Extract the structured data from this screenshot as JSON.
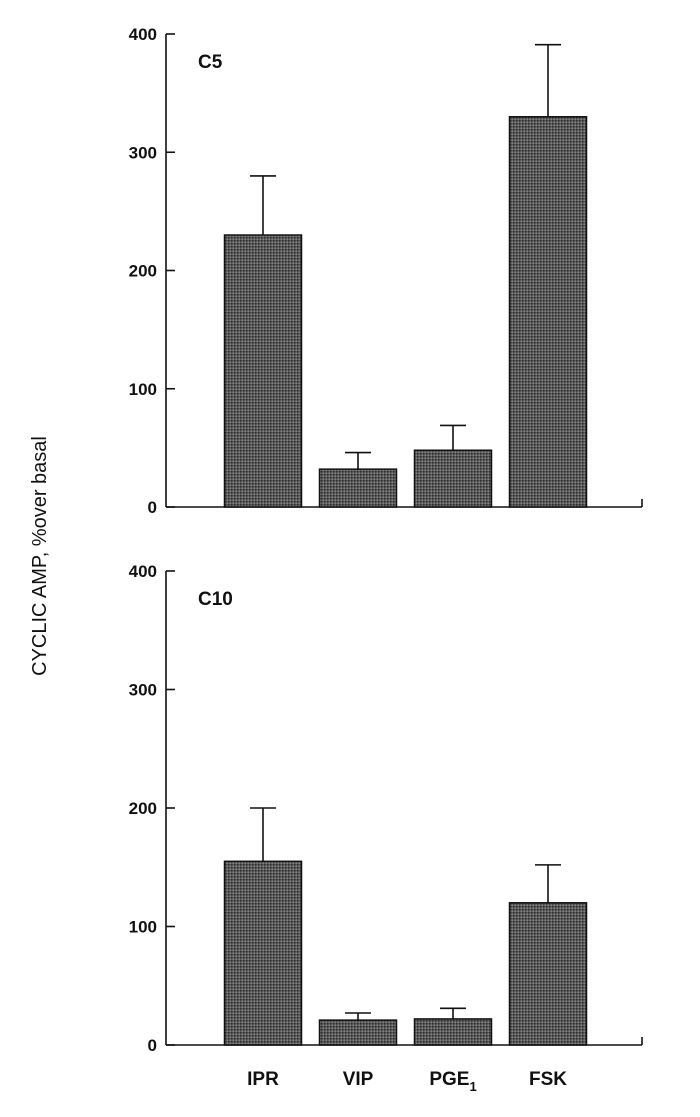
{
  "ylabel": "CYCLIC AMP, %over basal",
  "chart_data": [
    {
      "type": "bar",
      "panel": "C5",
      "categories": [
        "IPR",
        "VIP",
        "PGE1",
        "FSK"
      ],
      "values": [
        230,
        32,
        48,
        330
      ],
      "errors": [
        50,
        14,
        21,
        61
      ],
      "ylim": [
        0,
        400
      ],
      "yticks": [
        0,
        100,
        200,
        300,
        400
      ],
      "ylabel": "CYCLIC AMP, %over basal"
    },
    {
      "type": "bar",
      "panel": "C10",
      "categories": [
        "IPR",
        "VIP",
        "PGE1",
        "FSK"
      ],
      "values": [
        155,
        21,
        22,
        120
      ],
      "errors": [
        45,
        6,
        9,
        32
      ],
      "ylim": [
        0,
        400
      ],
      "yticks": [
        0,
        100,
        200,
        300,
        400
      ],
      "ylabel": "CYCLIC AMP, %over basal"
    }
  ],
  "x_tick_labels": [
    {
      "base": "IPR",
      "sub": ""
    },
    {
      "base": "VIP",
      "sub": ""
    },
    {
      "base": "PGE",
      "sub": "1"
    },
    {
      "base": "FSK",
      "sub": ""
    }
  ]
}
